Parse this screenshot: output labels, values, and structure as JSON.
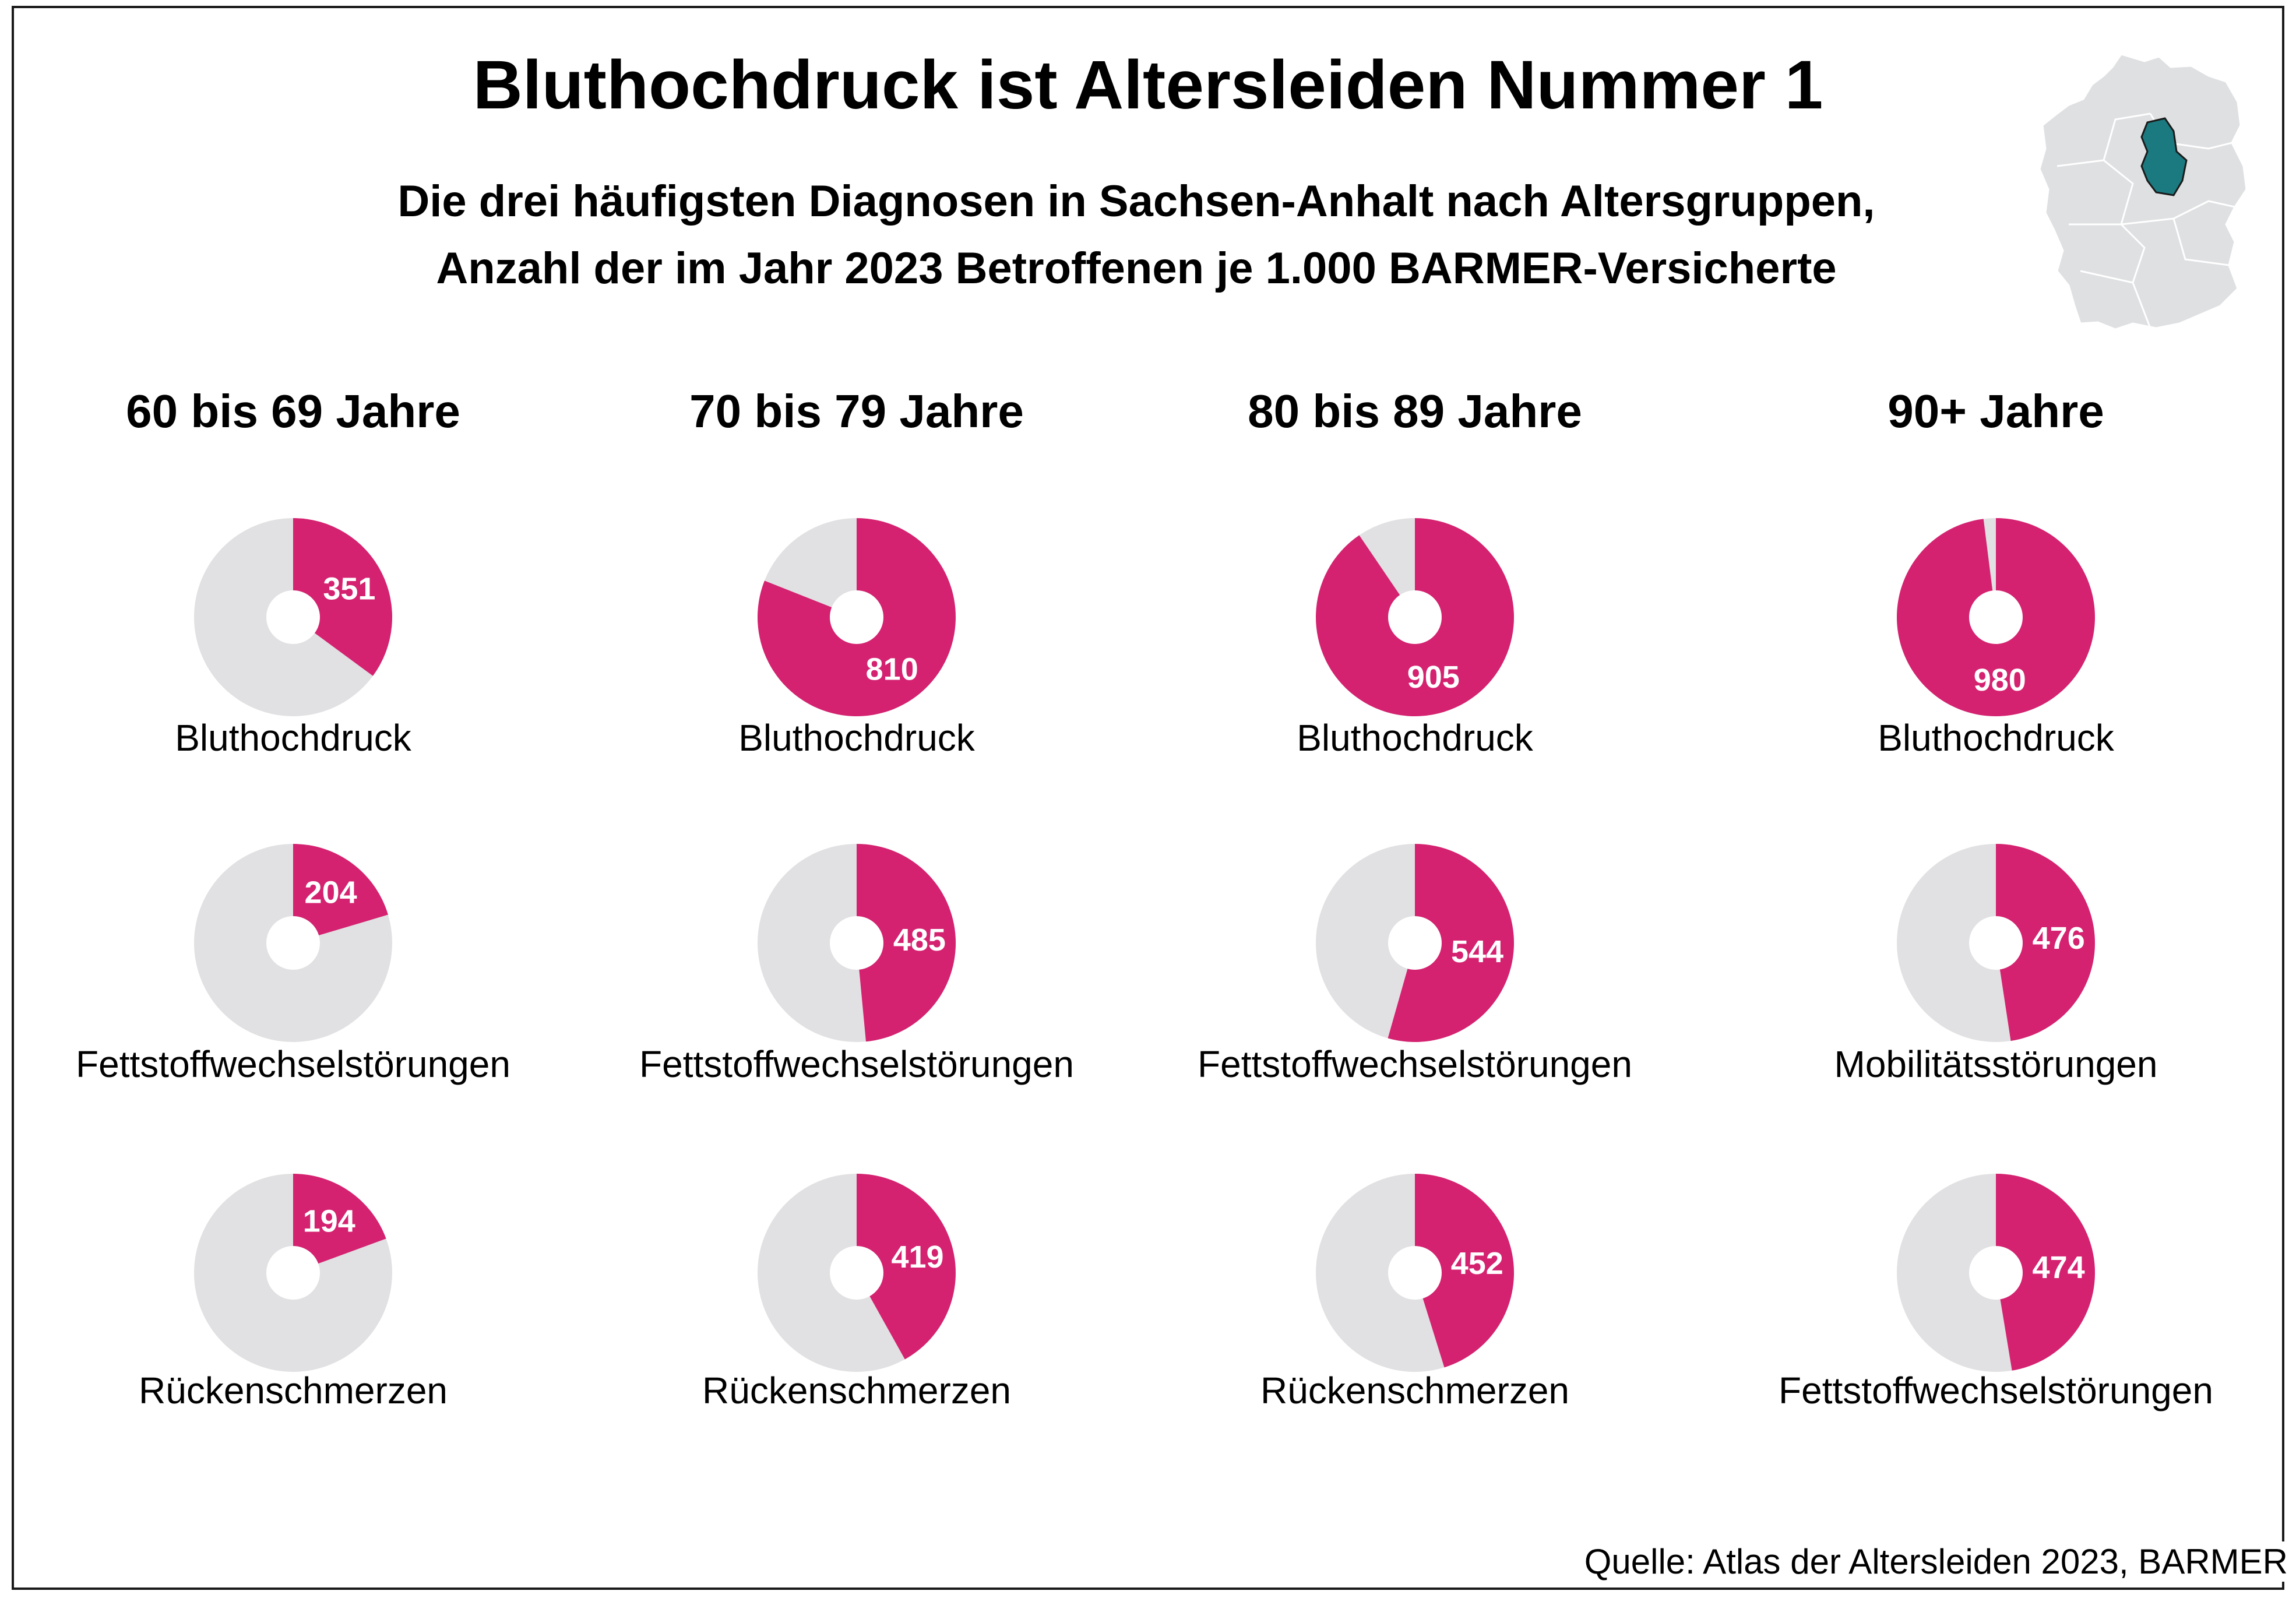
{
  "title": "Bluthochdruck ist Altersleiden Nummer 1",
  "subtitle_line1": "Die drei häufigsten Diagnosen in Sachsen-Anhalt nach Altersgruppen,",
  "subtitle_line2": "Anzahl der im Jahr 2023 Betroffenen je 1.000 BARMER-Versicherte",
  "source": "Quelle: Atlas der Altersleiden 2023, BARMER",
  "map": {
    "name": "germany-map-saxony-anhalt-highlighted",
    "highlight_color": "#1a7a80",
    "base_color": "#dfe0e2"
  },
  "colors": {
    "accent": "#d42270",
    "background_slice": "#e1e1e3"
  },
  "chart_data": {
    "type": "pie",
    "title": "Bluthochdruck ist Altersleiden Nummer 1",
    "unit": "je 1.000 BARMER-Versicherte",
    "max": 1000,
    "groups": [
      {
        "age": "60 bis 69 Jahre",
        "diagnoses": [
          {
            "name": "Bluthochdruck",
            "value": 351
          },
          {
            "name": "Fettstoffwechselstörungen",
            "value": 204
          },
          {
            "name": "Rückenschmerzen",
            "value": 194
          }
        ]
      },
      {
        "age": "70 bis 79 Jahre",
        "diagnoses": [
          {
            "name": "Bluthochdruck",
            "value": 810
          },
          {
            "name": "Fettstoffwechselstörungen",
            "value": 485
          },
          {
            "name": "Rückenschmerzen",
            "value": 419
          }
        ]
      },
      {
        "age": "80 bis 89 Jahre",
        "diagnoses": [
          {
            "name": "Bluthochdruck",
            "value": 905
          },
          {
            "name": "Fettstoffwechselstörungen",
            "value": 544
          },
          {
            "name": "Rückenschmerzen",
            "value": 452
          }
        ]
      },
      {
        "age": "90+ Jahre",
        "diagnoses": [
          {
            "name": "Bluthochdruck",
            "value": 980
          },
          {
            "name": "Mobilitätsstörungen",
            "value": 476
          },
          {
            "name": "Fettstoffwechselstörungen",
            "value": 474
          }
        ]
      }
    ]
  }
}
